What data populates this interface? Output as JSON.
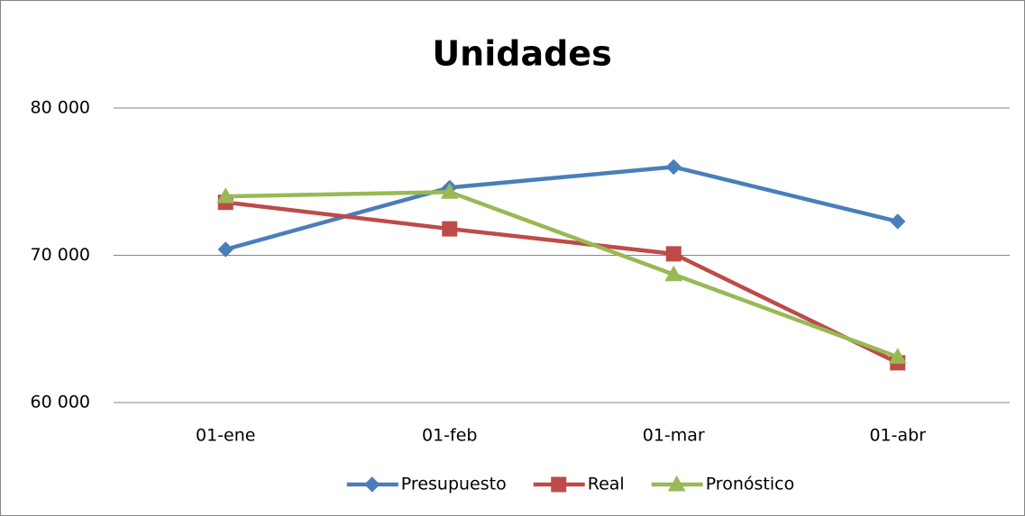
{
  "chart_data": {
    "type": "line",
    "title": "Unidades",
    "categories": [
      "01-ene",
      "01-feb",
      "01-mar",
      "01-abr"
    ],
    "series": [
      {
        "name": "Presupuesto",
        "color": "#4a7ebb",
        "marker": "diamond",
        "values": [
          70400,
          74600,
          76000,
          72300
        ]
      },
      {
        "name": "Real",
        "color": "#be4b48",
        "marker": "square",
        "values": [
          73600,
          71800,
          70100,
          62700
        ]
      },
      {
        "name": "Pronóstico",
        "color": "#98b954",
        "marker": "triangle",
        "values": [
          74000,
          74300,
          68700,
          63100
        ]
      }
    ],
    "ylim": [
      60000,
      80000
    ],
    "yticks": [
      {
        "value": 60000,
        "label": "60 000"
      },
      {
        "value": 70000,
        "label": "70 000"
      },
      {
        "value": 80000,
        "label": "80 000"
      }
    ],
    "grid": true,
    "legend": "bottom"
  }
}
